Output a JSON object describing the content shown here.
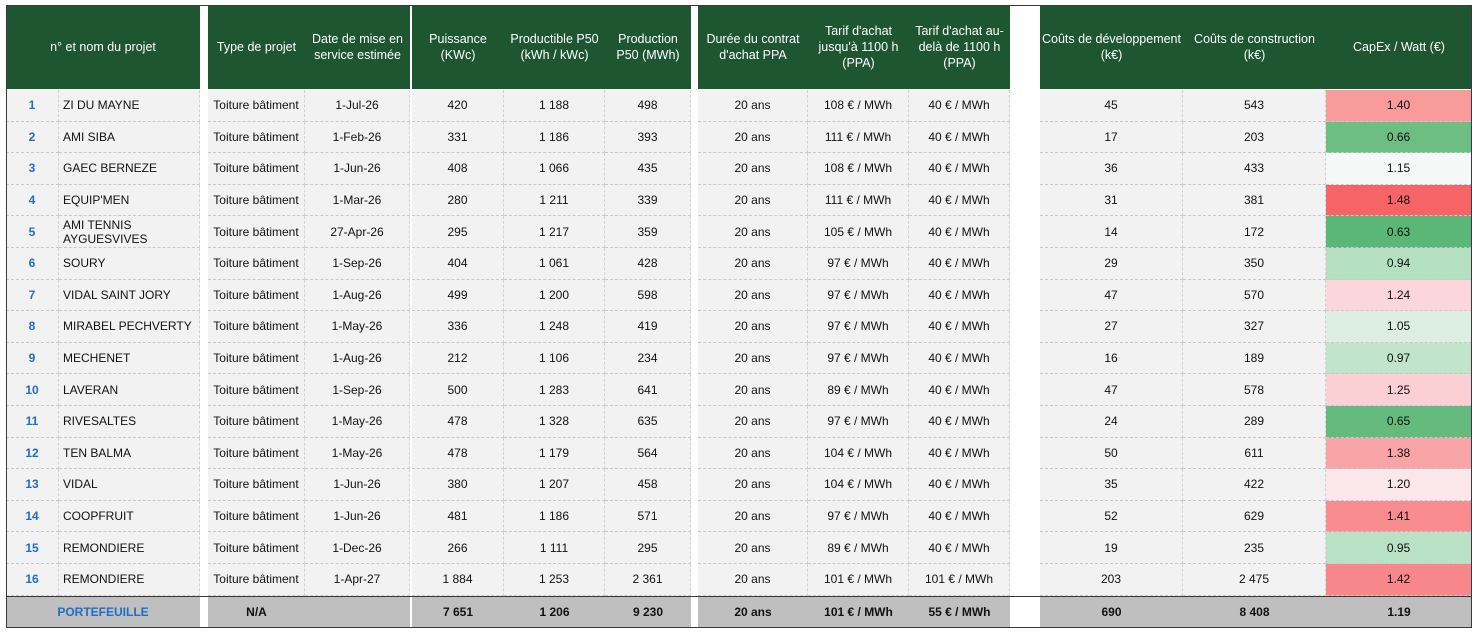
{
  "headers": {
    "project": "n° et nom du projet",
    "type": "Type de projet",
    "date": "Date de mise en service estimée",
    "power": "Puissance (KWc)",
    "productible": "Productible P50 (kWh / kWc)",
    "production": "Production P50 (MWh)",
    "duration": "Durée du contrat d'achat PPA",
    "tariff1": "Tarif d'achat jusqu'à 1100 h (PPA)",
    "tariff2": "Tarif d'achat au-delà de 1100 h (PPA)",
    "devcost": "Coûts de développement (k€)",
    "buildcost": "Coûts de construction (k€)",
    "capex": "CapEx / Watt (€)"
  },
  "rows": [
    {
      "num": "1",
      "name": "ZI DU MAYNE",
      "type": "Toiture bâtiment",
      "date": "1-Jul-26",
      "power": "420",
      "productible": "1 188",
      "production": "498",
      "duration": "20 ans",
      "tariff1": "108 € / MWh",
      "tariff2": "40 € / MWh",
      "devcost": "45",
      "buildcost": "543",
      "capex": "1.40",
      "capex_color": "#f89b9b"
    },
    {
      "num": "2",
      "name": "AMI SIBA",
      "type": "Toiture bâtiment",
      "date": "1-Feb-26",
      "power": "331",
      "productible": "1 186",
      "production": "393",
      "duration": "20 ans",
      "tariff1": "111 € / MWh",
      "tariff2": "40 € / MWh",
      "devcost": "17",
      "buildcost": "203",
      "capex": "0.66",
      "capex_color": "#6cbe83"
    },
    {
      "num": "3",
      "name": "GAEC BERNEZE",
      "type": "Toiture bâtiment",
      "date": "1-Jun-26",
      "power": "408",
      "productible": "1 066",
      "production": "435",
      "duration": "20 ans",
      "tariff1": "108 € / MWh",
      "tariff2": "40 € / MWh",
      "devcost": "36",
      "buildcost": "433",
      "capex": "1.15",
      "capex_color": "#f4f8f6"
    },
    {
      "num": "4",
      "name": "EQUIP'MEN",
      "type": "Toiture bâtiment",
      "date": "1-Mar-26",
      "power": "280",
      "productible": "1 211",
      "production": "339",
      "duration": "20 ans",
      "tariff1": "111 € / MWh",
      "tariff2": "40 € / MWh",
      "devcost": "31",
      "buildcost": "381",
      "capex": "1.48",
      "capex_color": "#f66468"
    },
    {
      "num": "5",
      "name": "AMI TENNIS AYGUESVIVES",
      "type": "Toiture bâtiment",
      "date": "27-Apr-26",
      "power": "295",
      "productible": "1 217",
      "production": "359",
      "duration": "20 ans",
      "tariff1": "105 € / MWh",
      "tariff2": "40 € / MWh",
      "devcost": "14",
      "buildcost": "172",
      "capex": "0.63",
      "capex_color": "#5bb777"
    },
    {
      "num": "6",
      "name": "SOURY",
      "type": "Toiture bâtiment",
      "date": "1-Sep-26",
      "power": "404",
      "productible": "1 061",
      "production": "428",
      "duration": "20 ans",
      "tariff1": "97 € / MWh",
      "tariff2": "40 € / MWh",
      "devcost": "29",
      "buildcost": "350",
      "capex": "0.94",
      "capex_color": "#b4dfc1"
    },
    {
      "num": "7",
      "name": "VIDAL SAINT JORY",
      "type": "Toiture bâtiment",
      "date": "1-Aug-26",
      "power": "499",
      "productible": "1 200",
      "production": "598",
      "duration": "20 ans",
      "tariff1": "97 € / MWh",
      "tariff2": "40 € / MWh",
      "devcost": "47",
      "buildcost": "570",
      "capex": "1.24",
      "capex_color": "#fbd6da"
    },
    {
      "num": "8",
      "name": "MIRABEL PECHVERTY",
      "type": "Toiture bâtiment",
      "date": "1-May-26",
      "power": "336",
      "productible": "1 248",
      "production": "419",
      "duration": "20 ans",
      "tariff1": "97 € / MWh",
      "tariff2": "40 € / MWh",
      "devcost": "27",
      "buildcost": "327",
      "capex": "1.05",
      "capex_color": "#dcefe2"
    },
    {
      "num": "9",
      "name": "MECHENET",
      "type": "Toiture bâtiment",
      "date": "1-Aug-26",
      "power": "212",
      "productible": "1 106",
      "production": "234",
      "duration": "20 ans",
      "tariff1": "97 € / MWh",
      "tariff2": "40 € / MWh",
      "devcost": "16",
      "buildcost": "189",
      "capex": "0.97",
      "capex_color": "#c1e5cb"
    },
    {
      "num": "10",
      "name": "LAVERAN",
      "type": "Toiture bâtiment",
      "date": "1-Sep-26",
      "power": "500",
      "productible": "1 283",
      "production": "641",
      "duration": "20 ans",
      "tariff1": "89 € / MWh",
      "tariff2": "40 € / MWh",
      "devcost": "47",
      "buildcost": "578",
      "capex": "1.25",
      "capex_color": "#fbd0d4"
    },
    {
      "num": "11",
      "name": "RIVESALTES",
      "type": "Toiture bâtiment",
      "date": "1-May-26",
      "power": "478",
      "productible": "1 328",
      "production": "635",
      "duration": "20 ans",
      "tariff1": "97 € / MWh",
      "tariff2": "40 € / MWh",
      "devcost": "24",
      "buildcost": "289",
      "capex": "0.65",
      "capex_color": "#64bb7d"
    },
    {
      "num": "12",
      "name": "TEN BALMA",
      "type": "Toiture bâtiment",
      "date": "1-May-26",
      "power": "478",
      "productible": "1 179",
      "production": "564",
      "duration": "20 ans",
      "tariff1": "104 € / MWh",
      "tariff2": "40 € / MWh",
      "devcost": "50",
      "buildcost": "611",
      "capex": "1.38",
      "capex_color": "#f9a4a6"
    },
    {
      "num": "13",
      "name": "VIDAL",
      "type": "Toiture bâtiment",
      "date": "1-Jun-26",
      "power": "380",
      "productible": "1 207",
      "production": "458",
      "duration": "20 ans",
      "tariff1": "104 € / MWh",
      "tariff2": "40 € / MWh",
      "devcost": "35",
      "buildcost": "422",
      "capex": "1.20",
      "capex_color": "#fbe6e9"
    },
    {
      "num": "14",
      "name": "COOPFRUIT",
      "type": "Toiture bâtiment",
      "date": "1-Jun-26",
      "power": "481",
      "productible": "1 186",
      "production": "571",
      "duration": "20 ans",
      "tariff1": "97 € / MWh",
      "tariff2": "40 € / MWh",
      "devcost": "52",
      "buildcost": "629",
      "capex": "1.41",
      "capex_color": "#f88c8f"
    },
    {
      "num": "15",
      "name": "REMONDIERE",
      "type": "Toiture bâtiment",
      "date": "1-Dec-26",
      "power": "266",
      "productible": "1 111",
      "production": "295",
      "duration": "20 ans",
      "tariff1": "89 € / MWh",
      "tariff2": "40 € / MWh",
      "devcost": "19",
      "buildcost": "235",
      "capex": "0.95",
      "capex_color": "#b9e1c5"
    },
    {
      "num": "16",
      "name": "REMONDIERE",
      "type": "Toiture bâtiment",
      "date": "1-Apr-27",
      "power": "1 884",
      "productible": "1 253",
      "production": "2 361",
      "duration": "20 ans",
      "tariff1": "101 € / MWh",
      "tariff2": "101 € / MWh",
      "devcost": "203",
      "buildcost": "2 475",
      "capex": "1.42",
      "capex_color": "#f8878b"
    }
  ],
  "total": {
    "label": "PORTEFEUILLE",
    "type": "N/A",
    "power": "7 651",
    "productible": "1 206",
    "production": "9 230",
    "duration": "20 ans",
    "tariff1": "101 € / MWh",
    "tariff2": "55 € / MWh",
    "devcost": "690",
    "buildcost": "8 408",
    "capex": "1.19"
  }
}
